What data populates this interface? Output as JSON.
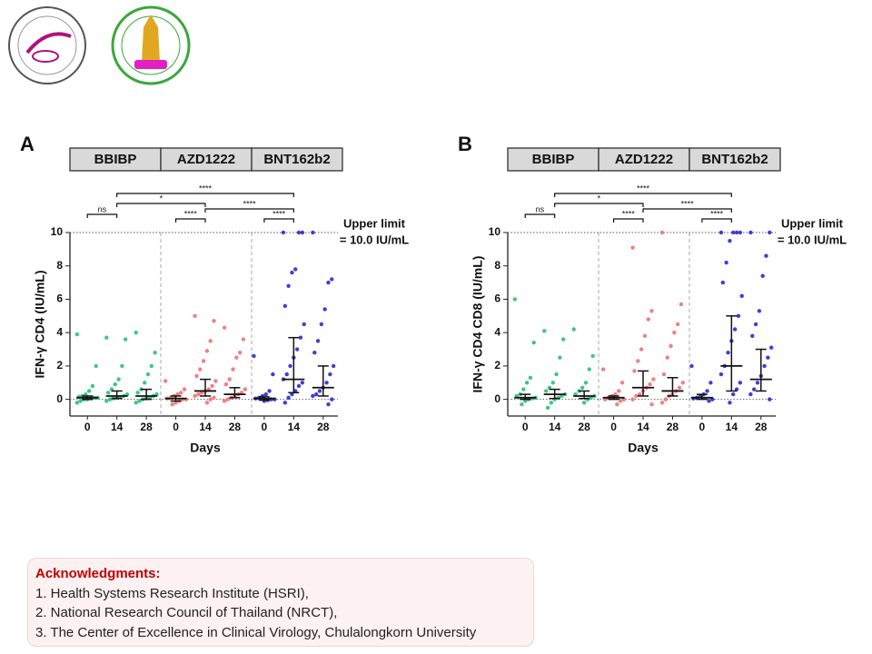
{
  "chart_data": [
    {
      "type": "dotplot",
      "panel": "A",
      "y_label": "IFN-γ CD4 (IU/mL)",
      "x_label": "Days",
      "categories": [
        "0",
        "14",
        "28",
        "0",
        "14",
        "28",
        "0",
        "14",
        "28"
      ],
      "ylim": [
        -1,
        10
      ],
      "yticks": [
        0,
        2,
        4,
        6,
        8,
        10
      ],
      "upper_limit": 10,
      "upper_limit_label": "Upper limit",
      "upper_limit_value_label": "= 10.0 IU/mL",
      "comparisons": [
        {
          "from": 0,
          "to": 1,
          "label": "ns"
        },
        {
          "from": 1,
          "to": 4,
          "label": "*"
        },
        {
          "from": 1,
          "to": 7,
          "label": "****"
        },
        {
          "from": 3,
          "to": 4,
          "label": "****"
        },
        {
          "from": 4,
          "to": 7,
          "label": "****"
        },
        {
          "from": 6,
          "to": 7,
          "label": "****"
        }
      ],
      "series": [
        {
          "name": "BBIBP",
          "color": "#2bbf7a",
          "values": [
            [
              3.9,
              2.0,
              0.8,
              0.5,
              0.3,
              0.2,
              0.15,
              0.1,
              0.1,
              0.05,
              0,
              0,
              -0.1,
              -0.2
            ],
            [
              3.7,
              3.6,
              2.0,
              1.2,
              0.9,
              0.6,
              0.4,
              0.3,
              0.2,
              0.15,
              0.1,
              0.05,
              0,
              -0.1
            ],
            [
              4.0,
              2.8,
              2.0,
              1.5,
              1.0,
              0.6,
              0.4,
              0.3,
              0.2,
              0.1,
              0.05,
              0,
              -0.1,
              -0.2
            ]
          ],
          "median": [
            0.1,
            0.2,
            0.2
          ],
          "q1": [
            0,
            0.05,
            0
          ],
          "q3": [
            0.2,
            0.5,
            0.6
          ]
        },
        {
          "name": "AZD1222",
          "color": "#f07272",
          "values": [
            [
              1.1,
              0.6,
              0.4,
              0.3,
              0.2,
              0.1,
              0.05,
              0,
              0,
              -0.1,
              -0.2,
              -0.3
            ],
            [
              5.0,
              4.7,
              3.5,
              2.9,
              2.3,
              1.8,
              1.4,
              1.1,
              0.8,
              0.6,
              0.5,
              0.4,
              0.3,
              0.2,
              0.1,
              0,
              -0.2
            ],
            [
              4.3,
              3.6,
              2.8,
              2.5,
              1.8,
              1.2,
              0.9,
              0.6,
              0.4,
              0.3,
              0.2,
              0.1,
              0,
              -0.1
            ]
          ],
          "median": [
            0.05,
            0.5,
            0.3
          ],
          "q1": [
            -0.1,
            0.2,
            0.1
          ],
          "q3": [
            0.2,
            1.2,
            0.7
          ]
        },
        {
          "name": "BNT162b2",
          "color": "#2a2ad0",
          "values": [
            [
              2.6,
              1.5,
              0.5,
              0.3,
              0.2,
              0.1,
              0.05,
              0,
              0,
              -0.05,
              -0.1
            ],
            [
              10,
              10,
              10,
              7.8,
              7.6,
              6.8,
              5.6,
              4.5,
              3.7,
              3.0,
              2.5,
              2.0,
              1.5,
              1.2,
              1.0,
              0.8,
              0.5,
              0.3,
              0.1,
              -0.2
            ],
            [
              10,
              7.2,
              7.0,
              5.4,
              4.5,
              3.5,
              2.8,
              2.0,
              1.5,
              1.0,
              0.7,
              0.5,
              0.3,
              0.2,
              0,
              -0.3
            ]
          ],
          "median": [
            0.05,
            1.2,
            0.7
          ],
          "q1": [
            -0.05,
            0.4,
            0.2
          ],
          "q3": [
            0.15,
            3.7,
            2.0
          ]
        }
      ]
    },
    {
      "type": "dotplot",
      "panel": "B",
      "y_label": "IFN-γ CD4 CD8 (IU/mL)",
      "x_label": "Days",
      "categories": [
        "0",
        "14",
        "28",
        "0",
        "14",
        "28",
        "0",
        "14",
        "28"
      ],
      "ylim": [
        -1,
        10
      ],
      "yticks": [
        0,
        2,
        4,
        6,
        8,
        10
      ],
      "upper_limit": 10,
      "upper_limit_label": "Upper limit",
      "upper_limit_value_label": "= 10.0 IU/mL",
      "comparisons": [
        {
          "from": 0,
          "to": 1,
          "label": "ns"
        },
        {
          "from": 1,
          "to": 4,
          "label": "*"
        },
        {
          "from": 1,
          "to": 7,
          "label": "****"
        },
        {
          "from": 3,
          "to": 4,
          "label": "****"
        },
        {
          "from": 4,
          "to": 7,
          "label": "****"
        },
        {
          "from": 6,
          "to": 7,
          "label": "****"
        }
      ],
      "series": [
        {
          "name": "BBIBP",
          "color": "#2bbf7a",
          "values": [
            [
              6.0,
              3.4,
              1.3,
              1.0,
              0.6,
              0.3,
              0.2,
              0.1,
              0.05,
              0,
              -0.1,
              -0.3
            ],
            [
              4.1,
              3.6,
              2.5,
              1.5,
              1.0,
              0.7,
              0.5,
              0.3,
              0.2,
              0.1,
              0,
              -0.2,
              -0.5
            ],
            [
              4.2,
              2.6,
              1.8,
              1.0,
              0.7,
              0.5,
              0.3,
              0.2,
              0.1,
              0,
              -0.2
            ]
          ],
          "median": [
            0.1,
            0.3,
            0.2
          ],
          "q1": [
            0,
            0.05,
            0.05
          ],
          "q3": [
            0.3,
            0.6,
            0.5
          ]
        },
        {
          "name": "AZD1222",
          "color": "#f07272",
          "values": [
            [
              1.8,
              1.0,
              0.5,
              0.3,
              0.2,
              0.1,
              0,
              0,
              -0.1,
              -0.3
            ],
            [
              9.1,
              5.3,
              4.8,
              3.8,
              3.0,
              2.3,
              1.7,
              1.2,
              0.9,
              0.7,
              0.5,
              0.3,
              0.2,
              0,
              -0.3
            ],
            [
              10,
              5.7,
              4.5,
              4.0,
              3.2,
              2.5,
              1.5,
              1.0,
              0.7,
              0.5,
              0.3,
              0.2,
              0,
              -0.2
            ]
          ],
          "median": [
            0.1,
            0.7,
            0.5
          ],
          "q1": [
            0,
            0.2,
            0.2
          ],
          "q3": [
            0.2,
            1.7,
            1.3
          ]
        },
        {
          "name": "BNT162b2",
          "color": "#2a2ad0",
          "values": [
            [
              2.0,
              1.0,
              0.5,
              0.3,
              0.2,
              0.1,
              0.05,
              0,
              -0.1
            ],
            [
              10,
              10,
              10,
              10,
              9.5,
              8.2,
              7.0,
              6.2,
              5.0,
              4.2,
              3.5,
              2.8,
              2.0,
              1.5,
              1.0,
              0.6,
              0.3,
              -0.2
            ],
            [
              10,
              10,
              8.6,
              7.4,
              5.3,
              4.5,
              3.8,
              3.1,
              2.5,
              2.0,
              1.4,
              1.0,
              0.6,
              0.3,
              0
            ]
          ],
          "median": [
            0.1,
            2.0,
            1.2
          ],
          "q1": [
            0,
            0.5,
            0.5
          ],
          "q3": [
            0.3,
            5.0,
            3.0
          ]
        }
      ]
    }
  ],
  "acknowledgments": {
    "title": "Acknowledgments:",
    "items": [
      "1. Health Systems Research Institute (HSRI),",
      "2. National Research Council of Thailand (NRCT),",
      "3. The Center of Excellence in Clinical Virology, Chulalongkorn University"
    ]
  }
}
